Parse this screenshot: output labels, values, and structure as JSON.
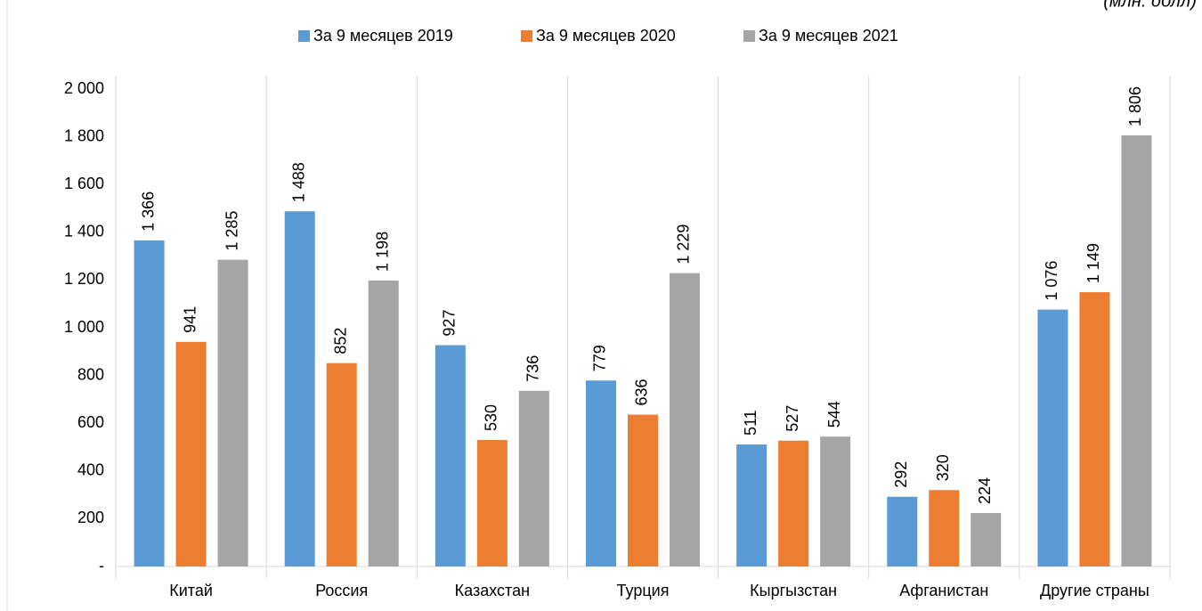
{
  "chart_data": {
    "type": "bar",
    "subtitle": "(млн. долл)",
    "categories": [
      "Китай",
      "Россия",
      "Казахстан",
      "Турция",
      "Кыргызстан",
      "Афганистан",
      "Другие страны"
    ],
    "series": [
      {
        "name": "За 9 месяцев 2019",
        "color": "#5b9bd5",
        "values": [
          1366,
          1488,
          927,
          779,
          511,
          292,
          1076
        ],
        "value_labels": [
          "1 366",
          "1 488",
          "927",
          "779",
          "511",
          "292",
          "1 076"
        ]
      },
      {
        "name": "За 9 месяцев 2020",
        "color": "#ed7d31",
        "values": [
          941,
          852,
          530,
          636,
          527,
          320,
          1149
        ],
        "value_labels": [
          "941",
          "852",
          "530",
          "636",
          "527",
          "320",
          "1 149"
        ]
      },
      {
        "name": "За 9 месяцев 2021",
        "color": "#a5a5a5",
        "values": [
          1285,
          1198,
          736,
          1229,
          544,
          224,
          1806
        ],
        "value_labels": [
          "1 285",
          "1 198",
          "736",
          "1 229",
          "544",
          "224",
          "1 806"
        ]
      }
    ],
    "ylim": [
      0,
      2000
    ],
    "yticks": [
      {
        "value": 0,
        "label": "-"
      },
      200,
      400,
      600,
      800,
      {
        "value": 1000,
        "label": "1 000"
      },
      {
        "value": 1200,
        "label": "1 200"
      },
      {
        "value": 1400,
        "label": "1 400"
      },
      {
        "value": 1600,
        "label": "1 600"
      },
      {
        "value": 1800,
        "label": "1 800"
      },
      {
        "value": 2000,
        "label": "2 000"
      }
    ],
    "grid": false,
    "legend": "top"
  }
}
